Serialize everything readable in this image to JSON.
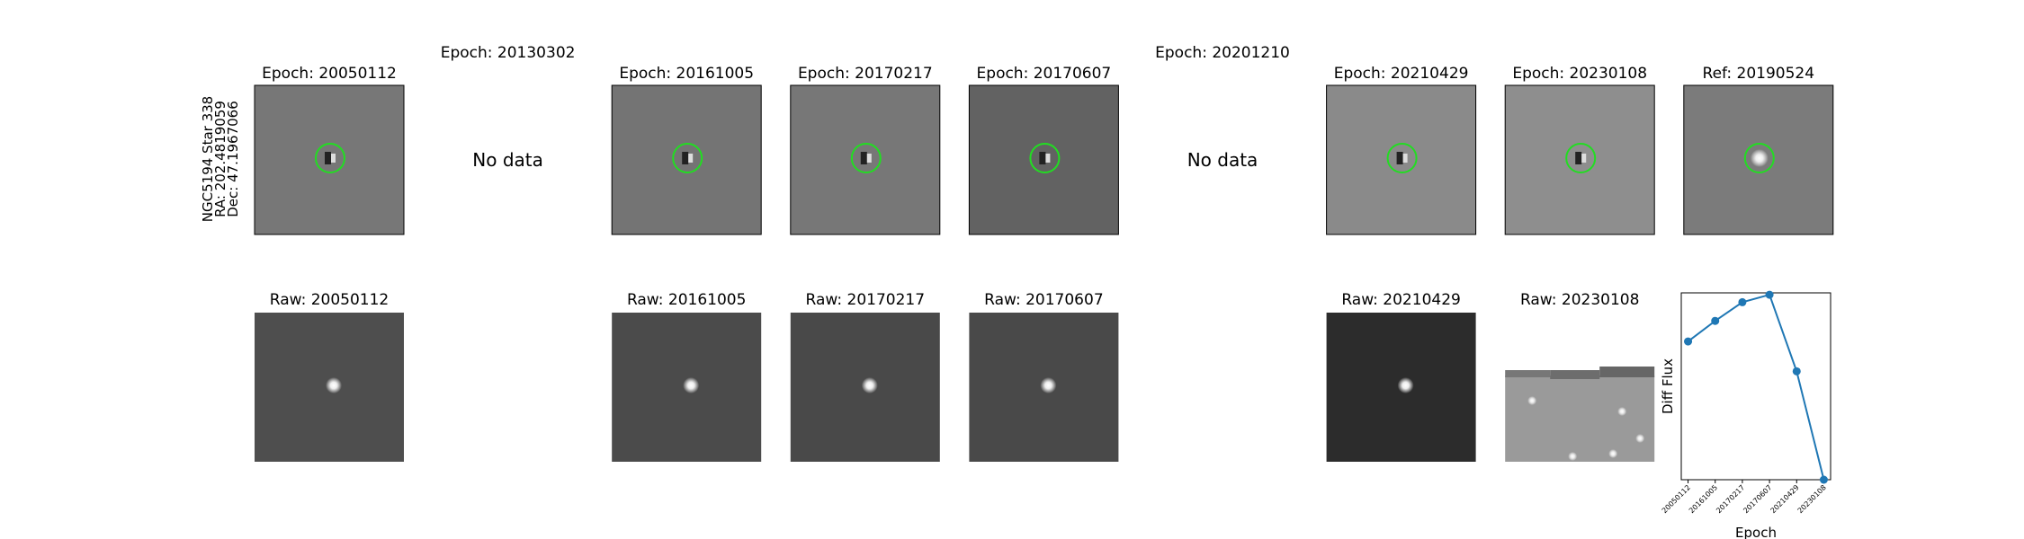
{
  "row_label": [
    "NGC5194 Star 338",
    "RA: 202.4819059",
    "Dec: 47.1967066"
  ],
  "diff_panels": [
    {
      "title": "Epoch: 20050112"
    },
    {
      "title": "Epoch: 20130302",
      "message": "No data"
    },
    {
      "title": "Epoch: 20161005"
    },
    {
      "title": "Epoch: 20170217"
    },
    {
      "title": "Epoch: 20170607"
    },
    {
      "title": "Epoch: 20201210",
      "message": "No data"
    },
    {
      "title": "Epoch: 20210429"
    },
    {
      "title": "Epoch: 20230108"
    },
    {
      "title": "Ref: 20190524"
    }
  ],
  "raw_panels": [
    {
      "title": "Raw: 20050112"
    },
    {
      "title": "Raw: 20161005"
    },
    {
      "title": "Raw: 20170217"
    },
    {
      "title": "Raw: 20170607"
    },
    {
      "title": "Raw: 20210429"
    },
    {
      "title": "Raw: 20230108"
    }
  ],
  "chart_data": {
    "type": "line",
    "xlabel": "Epoch",
    "ylabel": "Diff Flux",
    "categories": [
      "20050112",
      "20161005",
      "20170217",
      "20170607",
      "20210429",
      "20230108"
    ],
    "values": [
      0.74,
      0.85,
      0.95,
      0.99,
      0.58,
      0.0
    ],
    "color": "#1f77b4",
    "ylim": [
      0,
      1
    ]
  }
}
